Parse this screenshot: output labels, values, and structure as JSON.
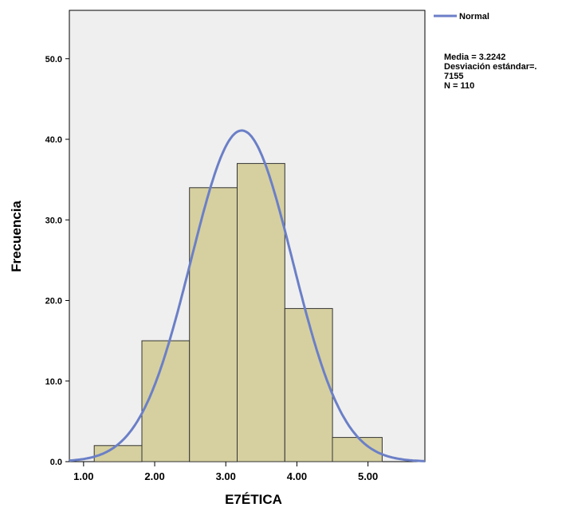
{
  "chart_data": {
    "type": "bar",
    "title": "",
    "xlabel": "E7ÉTICA",
    "ylabel": "Frecuencia",
    "xlim": [
      0.8,
      5.8
    ],
    "ylim": [
      0,
      56
    ],
    "x_ticks": [
      1,
      2,
      3,
      4,
      5
    ],
    "x_tick_labels": [
      "1.00",
      "2.00",
      "3.00",
      "4.00",
      "5.00"
    ],
    "y_ticks": [
      0,
      10,
      20,
      30,
      40,
      50
    ],
    "y_tick_labels": [
      "0.0",
      "10.0",
      "20.0",
      "30.0",
      "40.0",
      "50.0"
    ],
    "bins": [
      {
        "start": 1.15,
        "end": 1.82,
        "count": 2
      },
      {
        "start": 1.82,
        "end": 2.49,
        "count": 15
      },
      {
        "start": 2.49,
        "end": 3.16,
        "count": 34
      },
      {
        "start": 3.16,
        "end": 3.83,
        "count": 37
      },
      {
        "start": 3.83,
        "end": 4.5,
        "count": 19
      },
      {
        "start": 4.5,
        "end": 5.2,
        "count": 3
      }
    ],
    "normal_curve": {
      "mean": 3.2242,
      "sd": 0.7155,
      "n": 110,
      "bin_width": 0.67
    },
    "legend": {
      "label": "Normal",
      "position": "top-right"
    },
    "stats": {
      "line1": "Media = 3.2242",
      "line2": "Desviación estándar=.",
      "line3": "7155",
      "line4": "N = 110"
    },
    "colors": {
      "plot_background": "#efefef",
      "bar_fill": "#d6d0a0",
      "bar_stroke": "#333333",
      "curve": "#6b7fc7",
      "axis": "#000000"
    },
    "grid": false
  }
}
